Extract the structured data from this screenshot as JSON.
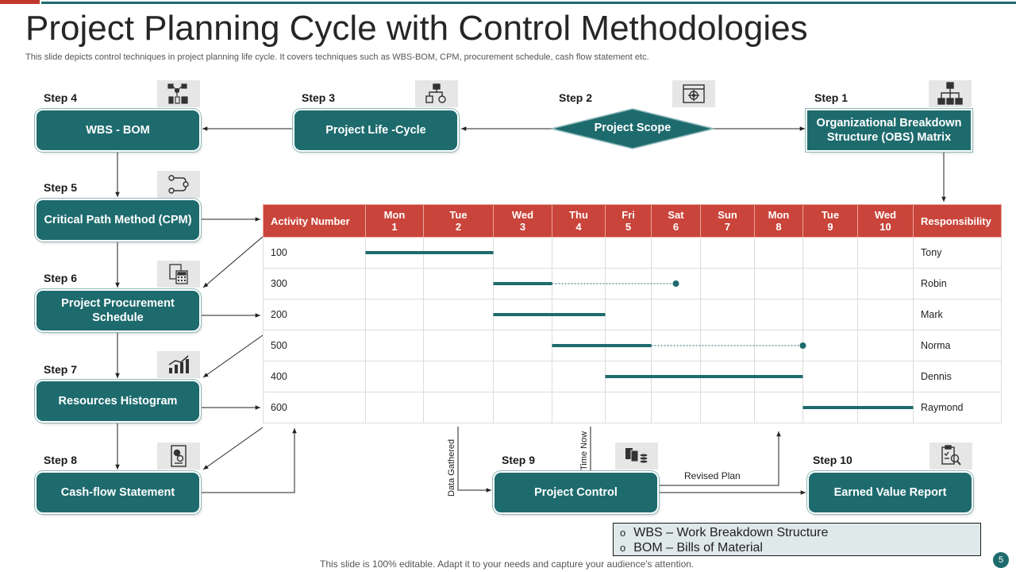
{
  "title": "Project Planning Cycle with Control Methodologies",
  "subtitle": "This slide depicts control techniques in project planning life cycle. It covers techniques such as WBS-BOM, CPM,  procurement schedule, cash flow statement etc.",
  "steps": {
    "s1": {
      "label": "Step 1",
      "box": "Organizational Breakdown Structure (OBS) Matrix"
    },
    "s2": {
      "label": "Step 2",
      "box": "Project Scope"
    },
    "s3": {
      "label": "Step 3",
      "box": "Project Life -Cycle"
    },
    "s4": {
      "label": "Step 4",
      "box": "WBS - BOM"
    },
    "s5": {
      "label": "Step 5",
      "box": "Critical Path Method (CPM)"
    },
    "s6": {
      "label": "Step 6",
      "box": "Project Procurement Schedule"
    },
    "s7": {
      "label": "Step 7",
      "box": "Resources Histogram"
    },
    "s8": {
      "label": "Step 8",
      "box": "Cash-flow Statement"
    },
    "s9": {
      "label": "Step 9",
      "box": "Project Control"
    },
    "s10": {
      "label": "Step 10",
      "box": "Earned Value Report"
    }
  },
  "icons": {
    "s1": "org-chart-icon",
    "s2": "target-window-icon",
    "s3": "process-icon",
    "s4": "network-icon",
    "s5": "path-icon",
    "s6": "calculator-doc-icon",
    "s7": "bar-chart-icon",
    "s8": "money-doc-icon",
    "s9": "documents-coins-icon",
    "s10": "report-magnifier-icon"
  },
  "gantt": {
    "headers": [
      {
        "line1": "Activity  Number",
        "line2": ""
      },
      {
        "line1": "Mon",
        "line2": "1"
      },
      {
        "line1": "Tue",
        "line2": "2"
      },
      {
        "line1": "Wed",
        "line2": "3"
      },
      {
        "line1": "Thu",
        "line2": "4"
      },
      {
        "line1": "Fri",
        "line2": "5"
      },
      {
        "line1": "Sat",
        "line2": "6"
      },
      {
        "line1": "Sun",
        "line2": "7"
      },
      {
        "line1": "Mon",
        "line2": "8"
      },
      {
        "line1": "Tue",
        "line2": "9"
      },
      {
        "line1": "Wed",
        "line2": "10"
      },
      {
        "line1": "Responsibility",
        "line2": ""
      }
    ],
    "rows": [
      {
        "activity": "100",
        "responsibility": "Tony",
        "start": 1,
        "end": 3,
        "float_end": null
      },
      {
        "activity": "300",
        "responsibility": "Robin",
        "start": 3,
        "end": 4,
        "float_end": 6.5
      },
      {
        "activity": "200",
        "responsibility": "Mark",
        "start": 3,
        "end": 5,
        "float_end": null
      },
      {
        "activity": "500",
        "responsibility": "Norma",
        "start": 4,
        "end": 6,
        "float_end": 9
      },
      {
        "activity": "400",
        "responsibility": "Dennis",
        "start": 5,
        "end": 9,
        "float_end": null
      },
      {
        "activity": "600",
        "responsibility": "Raymond",
        "start": 9,
        "end": 11,
        "float_end": null
      }
    ],
    "bar_color": "#1e6b6e",
    "header_color": "#c9443a"
  },
  "annotations": {
    "data_gathered": "Data Gathered",
    "time_now": "Time Now",
    "revised_plan": "Revised Plan"
  },
  "legend": {
    "items": [
      "WBS – Work Breakdown Structure",
      "BOM – Bills of Material"
    ],
    "bullet": "o"
  },
  "footer": "This slide is 100% editable. Adapt it to your needs and capture your audience's attention.",
  "page_number": "5",
  "colors": {
    "teal": "#1e6b6e",
    "red": "#c0392b"
  }
}
